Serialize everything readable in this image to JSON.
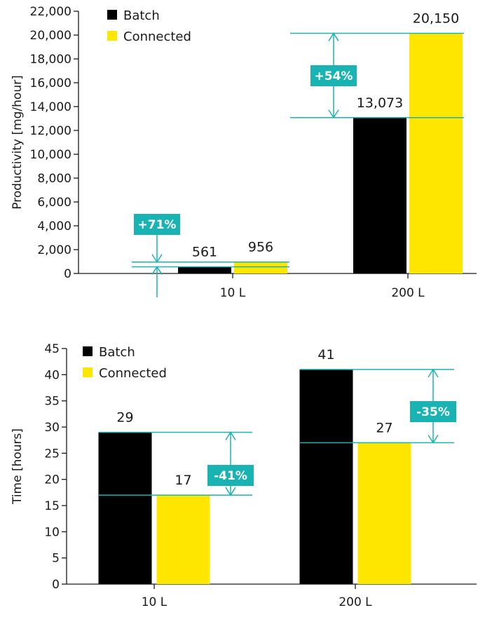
{
  "colors": {
    "batch": "#000000",
    "connected": "#ffe600",
    "annotation": "#1ab3b3",
    "axis": "#1a1a1a"
  },
  "chart_data": [
    {
      "type": "bar",
      "categories": [
        "10 L",
        "200 L"
      ],
      "series": [
        {
          "name": "Batch",
          "values": [
            561,
            13073
          ],
          "labels": [
            "561",
            "13,073"
          ]
        },
        {
          "name": "Connected",
          "values": [
            956,
            20150
          ],
          "labels": [
            "956",
            "20,150"
          ]
        }
      ],
      "ylabel": "Productivity [mg/hour]",
      "xlabel": "",
      "ylim": [
        0,
        22000
      ],
      "yticks": [
        0,
        2000,
        4000,
        6000,
        8000,
        10000,
        12000,
        14000,
        16000,
        18000,
        20000,
        22000
      ],
      "ytick_labels": [
        "0",
        "2,000",
        "4,000",
        "6,000",
        "8,000",
        "10,000",
        "12,000",
        "14,000",
        "16,000",
        "18,000",
        "20,000",
        "22,000"
      ],
      "legend_position": "top-left",
      "annotations": [
        {
          "category": "10 L",
          "text": "+71%"
        },
        {
          "category": "200 L",
          "text": "+54%"
        }
      ]
    },
    {
      "type": "bar",
      "categories": [
        "10 L",
        "200 L"
      ],
      "series": [
        {
          "name": "Batch",
          "values": [
            29,
            41
          ],
          "labels": [
            "29",
            "41"
          ]
        },
        {
          "name": "Connected",
          "values": [
            17,
            27
          ],
          "labels": [
            "17",
            "27"
          ]
        }
      ],
      "ylabel": "Time [hours]",
      "xlabel": "",
      "ylim": [
        0,
        45
      ],
      "yticks": [
        0,
        5,
        10,
        15,
        20,
        25,
        30,
        35,
        40,
        45
      ],
      "ytick_labels": [
        "0",
        "5",
        "10",
        "15",
        "20",
        "25",
        "30",
        "35",
        "40",
        "45"
      ],
      "legend_position": "top-left",
      "annotations": [
        {
          "category": "10 L",
          "text": "-41%"
        },
        {
          "category": "200 L",
          "text": "-35%"
        }
      ]
    }
  ]
}
